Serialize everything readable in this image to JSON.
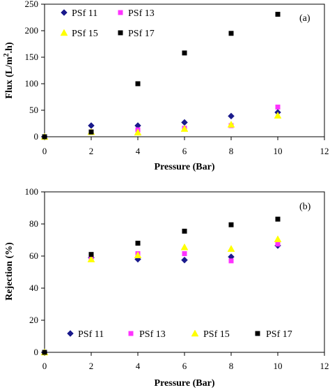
{
  "chart_data": [
    {
      "type": "scatter",
      "title": "",
      "panel_label": "(a)",
      "xlabel": "Pressure (Bar)",
      "ylabel_main": "Flux (L/m",
      "ylabel_sup": "2",
      "ylabel_tail": ".h)",
      "xlim": [
        0,
        12
      ],
      "ylim": [
        0,
        250
      ],
      "xticks": [
        0,
        2,
        4,
        6,
        8,
        10,
        12
      ],
      "yticks": [
        0,
        50,
        100,
        150,
        200,
        250
      ],
      "legend_position": "top-left",
      "series": [
        {
          "name": "PSf 11",
          "marker": "diamond",
          "color": "#1a1a8c",
          "x": [
            0,
            2,
            4,
            6,
            8,
            10
          ],
          "y": [
            0,
            21,
            21,
            27,
            39,
            46
          ]
        },
        {
          "name": "PSf 13",
          "marker": "square",
          "color": "#ff33ff",
          "x": [
            0,
            2,
            4,
            6,
            8,
            10
          ],
          "y": [
            0,
            9,
            13,
            16,
            21,
            56
          ]
        },
        {
          "name": "PSf 15",
          "marker": "triangle",
          "color": "#ffff00",
          "x": [
            0,
            2,
            4,
            6,
            8,
            10
          ],
          "y": [
            0,
            9,
            8,
            15,
            23,
            40
          ]
        },
        {
          "name": "PSf 17",
          "marker": "square",
          "color": "#000000",
          "x": [
            0,
            2,
            4,
            6,
            8,
            10
          ],
          "y": [
            0,
            9,
            100,
            158,
            195,
            231
          ]
        }
      ]
    },
    {
      "type": "scatter",
      "title": "",
      "panel_label": "(b)",
      "xlabel": "Pressure (Bar)",
      "ylabel_main": "Rejection (%)",
      "ylabel_sup": "",
      "ylabel_tail": "",
      "xlim": [
        0,
        12
      ],
      "ylim": [
        0,
        100
      ],
      "xticks": [
        0,
        2,
        4,
        6,
        8,
        10,
        12
      ],
      "yticks": [
        0,
        20,
        40,
        60,
        80,
        100
      ],
      "legend_position": "bottom",
      "series": [
        {
          "name": "PSf 11",
          "marker": "diamond",
          "color": "#1a1a8c",
          "x": [
            0,
            2,
            4,
            6,
            8,
            10
          ],
          "y": [
            0,
            59,
            58,
            57.5,
            59.5,
            66.5
          ]
        },
        {
          "name": "PSf 13",
          "marker": "square",
          "color": "#ff33ff",
          "x": [
            0,
            2,
            4,
            6,
            8,
            10
          ],
          "y": [
            0,
            59,
            61.5,
            61.5,
            57,
            67.5
          ]
        },
        {
          "name": "PSf 15",
          "marker": "triangle",
          "color": "#ffff00",
          "x": [
            0,
            2,
            4,
            6,
            8,
            10
          ],
          "y": [
            0,
            58,
            60.5,
            65.5,
            64.5,
            70.5
          ]
        },
        {
          "name": "PSf 17",
          "marker": "square",
          "color": "#000000",
          "x": [
            0,
            2,
            4,
            6,
            8,
            10
          ],
          "y": [
            0,
            61,
            68,
            75.5,
            79.5,
            83
          ]
        }
      ]
    }
  ]
}
